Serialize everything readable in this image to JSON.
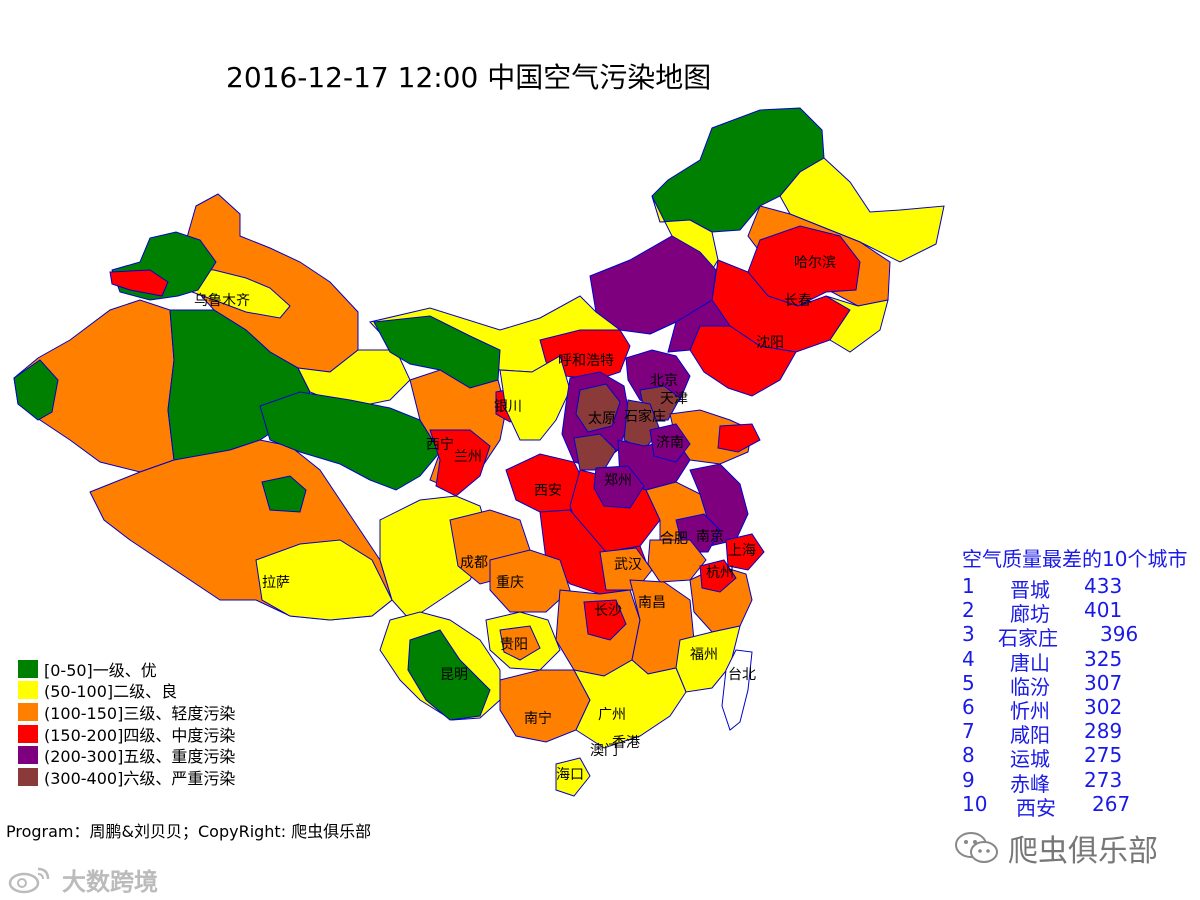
{
  "map": {
    "title": "2016-12-17 12:00 中国空气污染地图",
    "colors": {
      "level1": "#008000",
      "level2": "#ffff00",
      "level3": "#ff7f00",
      "level4": "#ff0000",
      "level5": "#7f007f",
      "level6": "#8b3a3a",
      "border": "#0000cc"
    },
    "cities": [
      "乌鲁木齐",
      "拉萨",
      "西宁",
      "兰州",
      "银川",
      "呼和浩特",
      "北京",
      "天津",
      "太原",
      "石家庄",
      "济南",
      "西安",
      "郑州",
      "成都",
      "重庆",
      "武汉",
      "合肥",
      "南京",
      "上海",
      "杭州",
      "长沙",
      "南昌",
      "贵阳",
      "昆明",
      "福州",
      "台北",
      "南宁",
      "广州",
      "澳门",
      "香港",
      "海口",
      "哈尔滨",
      "长春",
      "沈阳"
    ]
  },
  "legend": {
    "items": [
      {
        "label": "[0-50]一级、优",
        "color": "#008000"
      },
      {
        "label": "(50-100]二级、良",
        "color": "#ffff00"
      },
      {
        "label": "(100-150]三级、轻度污染",
        "color": "#ff7f00"
      },
      {
        "label": "(150-200]四级、中度污染",
        "color": "#ff0000"
      },
      {
        "label": "(200-300]五级、重度污染",
        "color": "#7f007f"
      },
      {
        "label": "(300-400]六级、严重污染",
        "color": "#8b3a3a"
      }
    ]
  },
  "ranking": {
    "title": "空气质量最差的10个城市",
    "items": [
      {
        "rank": "1",
        "city": "晋城",
        "aqi": "433"
      },
      {
        "rank": "2",
        "city": "廊坊",
        "aqi": "401"
      },
      {
        "rank": "3",
        "city": "石家庄",
        "aqi": "396"
      },
      {
        "rank": "4",
        "city": "唐山",
        "aqi": "325"
      },
      {
        "rank": "5",
        "city": "临汾",
        "aqi": "307"
      },
      {
        "rank": "6",
        "city": "忻州",
        "aqi": "302"
      },
      {
        "rank": "7",
        "city": "咸阳",
        "aqi": "289"
      },
      {
        "rank": "8",
        "city": "运城",
        "aqi": "275"
      },
      {
        "rank": "9",
        "city": "赤峰",
        "aqi": "273"
      },
      {
        "rank": "10",
        "city": "西安",
        "aqi": "267"
      }
    ]
  },
  "credit": "Program：周鹏&刘贝贝；CopyRight: 爬虫俱乐部",
  "wechat": {
    "name": "爬虫俱乐部",
    "icon": "wechat-icon"
  },
  "watermark": {
    "text": "大数跨境",
    "icon": "weibo-icon"
  }
}
